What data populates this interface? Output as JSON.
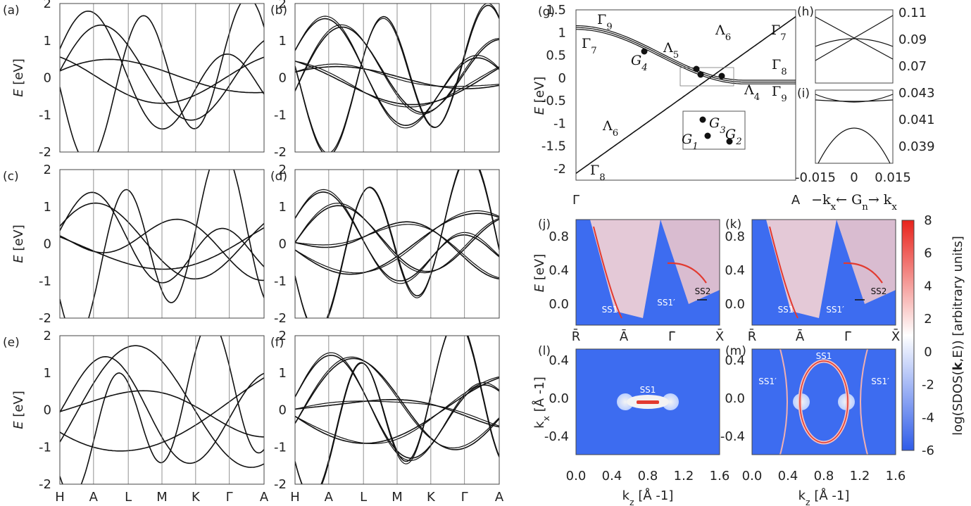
{
  "panel_labels": [
    "(a)",
    "(b)",
    "(c)",
    "(d)",
    "(e)",
    "(f)",
    "(g)",
    "(h)",
    "(i)",
    "(j)",
    "(k)",
    "(l)",
    "(m)"
  ],
  "chart_data": [
    {
      "type": "line",
      "panels": [
        "(a)",
        "(b)",
        "(c)",
        "(d)",
        "(e)",
        "(f)"
      ],
      "ylabel_base": "E",
      "ylabel_unit": "[eV]",
      "ylim": [
        -2,
        2
      ],
      "yticks": [
        "2",
        "1",
        "0",
        "-1",
        "-2"
      ],
      "path_labels": [
        "H",
        "A",
        "L",
        "M",
        "K",
        "Γ",
        "A"
      ],
      "description_free": true
    },
    {
      "type": "line",
      "panel": "(g)",
      "ylabel_base": "E",
      "ylabel_unit": "[eV]",
      "ylim": [
        -2.25,
        1.5
      ],
      "yticks": [
        "1.5",
        "1",
        "0.5",
        "0",
        "-0.5",
        "-1",
        "-1.5",
        "-2"
      ],
      "xtick_labels": [
        "Γ",
        "A"
      ],
      "annotations": [
        "Γ9",
        "Γ7",
        "Λ5",
        "Λ6",
        "Γ7",
        "Γ8",
        "Λ4",
        "Γ9",
        "Λ6",
        "Γ8",
        "G4",
        "G1",
        "G3",
        "G2"
      ]
    },
    {
      "type": "line",
      "panel": "(h)",
      "yticks": [
        "0.11",
        "0.09",
        "0.07"
      ]
    },
    {
      "type": "line",
      "panel": "(i)",
      "yticks": [
        "0.043",
        "0.041",
        "0.039"
      ],
      "xticks": [
        "-0.015",
        "0",
        "0.015"
      ],
      "xlabel_parts": [
        "−k",
        "x",
        "← G",
        "n",
        "→ k",
        "x"
      ]
    },
    {
      "type": "heatmap",
      "panels": [
        "(j)",
        "(k)"
      ],
      "ylabel_base": "E",
      "ylabel_unit": "[eV]",
      "yticks": [
        "0.8",
        "0.4",
        "0.0"
      ],
      "xtick_labels": [
        "R̄",
        "Ā",
        "Γ̄",
        "X̄"
      ],
      "annotations_j": [
        "SS1",
        "SS1′",
        "SS2"
      ],
      "annotations_k": [
        "SS1",
        "SS1′",
        "SS2"
      ]
    },
    {
      "type": "heatmap",
      "panels": [
        "(l)",
        "(m)"
      ],
      "ylabel": "k",
      "ylabel_sub": "x",
      "ylabel_unit": "[Å -1]",
      "xlabel": "k",
      "xlabel_sub": "z",
      "xlabel_unit": "[Å -1]",
      "yticks": [
        "0.4",
        "0.0",
        "-0.4"
      ],
      "xticks": [
        "0.0",
        "0.4",
        "0.8",
        "1.2",
        "1.6"
      ],
      "annotations_l": [
        "SS1"
      ],
      "annotations_m": [
        "SS1",
        "SS1′",
        "SS1′"
      ]
    },
    {
      "type": "colorbar",
      "label": "log(SDOS(k,E)) [arbitrary units]",
      "label_prefix": "log(SDOS(",
      "label_bold": "k",
      "label_suffix": ",E)) [arbitrary units]",
      "ticks": [
        "8",
        "6",
        "4",
        "2",
        "0",
        "-2",
        "-4",
        "-6"
      ],
      "colors": {
        "low": "#2f5ce8",
        "mid": "#ffffff",
        "high": "#e8231c"
      }
    }
  ]
}
